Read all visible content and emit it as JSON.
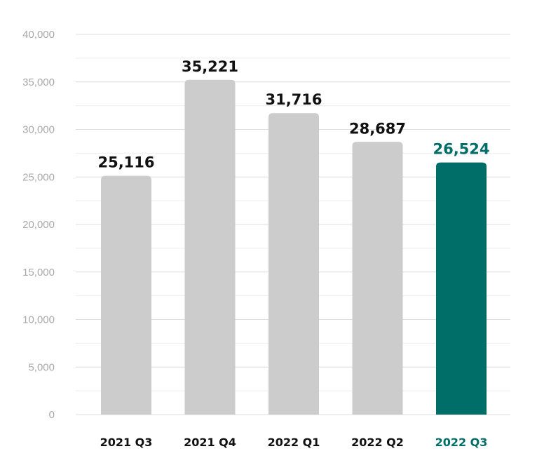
{
  "chart_data": {
    "type": "bar",
    "title": "",
    "xlabel": "",
    "ylabel": "",
    "categories": [
      "2021 Q3",
      "2021 Q4",
      "2022 Q1",
      "2022 Q2",
      "2022 Q3"
    ],
    "values": [
      25116,
      35221,
      31716,
      28687,
      26524
    ],
    "value_labels": [
      "25,116",
      "35,221",
      "31,716",
      "28,687",
      "26,524"
    ],
    "ylim": [
      0,
      40000
    ],
    "yticks": [
      0,
      5000,
      10000,
      15000,
      20000,
      25000,
      30000,
      35000,
      40000
    ],
    "ytick_labels": [
      "0",
      "5,000",
      "10,000",
      "15,000",
      "20,000",
      "25,000",
      "30,000",
      "35,000",
      "40,000"
    ],
    "grid": true,
    "highlight_index": 4,
    "colors": {
      "bar": "#cccccc",
      "highlight": "#006e68",
      "label": "#111111",
      "grid_major": "#dcdcdc",
      "grid_minor": "#eeeeee",
      "tick": "#a9a9a9"
    }
  }
}
